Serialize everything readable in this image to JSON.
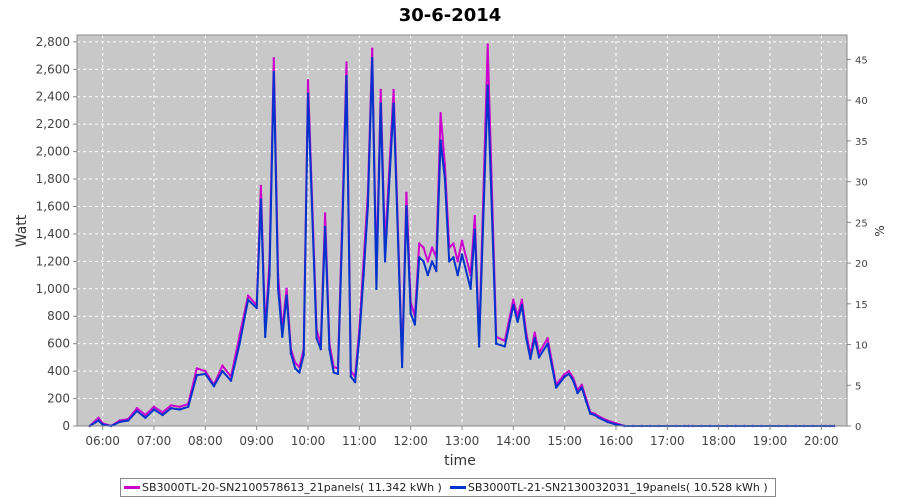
{
  "chart_data": {
    "type": "line",
    "title": "30-6-2014",
    "xlabel": "time",
    "ylabel": "Watt",
    "y2label": "%",
    "ylim": [
      0,
      2850
    ],
    "y2lim": [
      0,
      48
    ],
    "xlim": [
      "05:30",
      "20:30"
    ],
    "yticks": [
      "0",
      "200",
      "400",
      "600",
      "800",
      "1,000",
      "1,200",
      "1,400",
      "1,600",
      "1,800",
      "2,000",
      "2,200",
      "2,400",
      "2,600",
      "2,800"
    ],
    "y2ticks": [
      "0",
      "5",
      "10",
      "15",
      "20",
      "25",
      "30",
      "35",
      "40",
      "45"
    ],
    "xticks": [
      "06:00",
      "07:00",
      "08:00",
      "09:00",
      "10:00",
      "11:00",
      "12:00",
      "13:00",
      "14:00",
      "15:00",
      "16:00",
      "17:00",
      "18:00",
      "19:00",
      "20:00"
    ],
    "grid": true,
    "legend_position": "bottom",
    "series": [
      {
        "name": "SB3000TL-20-SN2100578613_21panels( 11.342 kWh )",
        "color": "#cc00cc",
        "x": [
          "05:45",
          "05:55",
          "06:00",
          "06:10",
          "06:20",
          "06:30",
          "06:40",
          "06:50",
          "07:00",
          "07:10",
          "07:20",
          "07:30",
          "07:40",
          "07:50",
          "08:00",
          "08:10",
          "08:20",
          "08:30",
          "08:40",
          "08:50",
          "09:00",
          "09:05",
          "09:10",
          "09:15",
          "09:20",
          "09:25",
          "09:30",
          "09:35",
          "09:40",
          "09:45",
          "09:50",
          "09:55",
          "10:00",
          "10:10",
          "10:15",
          "10:20",
          "10:25",
          "10:30",
          "10:35",
          "10:40",
          "10:45",
          "10:50",
          "10:55",
          "11:00",
          "11:05",
          "11:10",
          "11:15",
          "11:20",
          "11:25",
          "11:30",
          "11:40",
          "11:50",
          "11:55",
          "12:00",
          "12:05",
          "12:10",
          "12:15",
          "12:20",
          "12:25",
          "12:30",
          "12:35",
          "12:40",
          "12:45",
          "12:50",
          "12:55",
          "13:00",
          "13:10",
          "13:15",
          "13:20",
          "13:30",
          "13:40",
          "13:50",
          "14:00",
          "14:05",
          "14:10",
          "14:15",
          "14:20",
          "14:25",
          "14:30",
          "14:40",
          "14:50",
          "15:00",
          "15:05",
          "15:10",
          "15:15",
          "15:20",
          "15:25",
          "15:30",
          "15:35",
          "15:40",
          "15:50",
          "16:00",
          "16:10",
          "16:20",
          "16:30",
          "16:40",
          "16:50",
          "17:00",
          "17:10",
          "17:20",
          "17:25",
          "17:30",
          "17:40",
          "17:50",
          "18:00",
          "18:10",
          "18:20",
          "18:30",
          "18:40",
          "18:50",
          "19:00",
          "19:10",
          "19:20",
          "19:30",
          "19:40",
          "19:50",
          "20:00",
          "20:05",
          "20:10",
          "20:15"
        ],
        "values": [
          0,
          60,
          20,
          0,
          40,
          50,
          130,
          80,
          140,
          100,
          150,
          140,
          160,
          420,
          400,
          300,
          440,
          360,
          660,
          950,
          880,
          1750,
          700,
          1200,
          2680,
          1100,
          700,
          1000,
          560,
          460,
          430,
          560,
          2520,
          700,
          600,
          1550,
          600,
          430,
          420,
          1500,
          2650,
          400,
          360,
          700,
          1200,
          1700,
          2750,
          1100,
          2450,
          1300,
          2450,
          470,
          1700,
          900,
          800,
          1330,
          1300,
          1200,
          1300,
          1230,
          2280,
          1900,
          1300,
          1330,
          1200,
          1350,
          1100,
          1530,
          620,
          2780,
          650,
          620,
          920,
          800,
          920,
          680,
          520,
          680,
          530,
          640,
          300,
          380,
          400,
          350,
          260,
          300,
          200,
          100,
          90,
          70,
          40,
          20,
          0,
          0,
          0,
          0,
          0,
          0,
          0,
          0,
          0,
          0,
          0,
          0,
          0,
          0,
          0,
          0,
          0,
          0,
          0,
          0,
          0,
          0,
          0,
          0,
          0,
          0,
          0,
          0
        ]
      },
      {
        "name": "SB3000TL-21-SN2130032031_19panels( 10.528 kWh )",
        "color": "#0033cc",
        "x": [
          "05:45",
          "05:55",
          "06:00",
          "06:10",
          "06:20",
          "06:30",
          "06:40",
          "06:50",
          "07:00",
          "07:10",
          "07:20",
          "07:30",
          "07:40",
          "07:50",
          "08:00",
          "08:10",
          "08:20",
          "08:30",
          "08:40",
          "08:50",
          "09:00",
          "09:05",
          "09:10",
          "09:15",
          "09:20",
          "09:25",
          "09:30",
          "09:35",
          "09:40",
          "09:45",
          "09:50",
          "09:55",
          "10:00",
          "10:10",
          "10:15",
          "10:20",
          "10:25",
          "10:30",
          "10:35",
          "10:40",
          "10:45",
          "10:50",
          "10:55",
          "11:00",
          "11:05",
          "11:10",
          "11:15",
          "11:20",
          "11:25",
          "11:30",
          "11:40",
          "11:50",
          "11:55",
          "12:00",
          "12:05",
          "12:10",
          "12:15",
          "12:20",
          "12:25",
          "12:30",
          "12:35",
          "12:40",
          "12:45",
          "12:50",
          "12:55",
          "13:00",
          "13:10",
          "13:15",
          "13:20",
          "13:30",
          "13:40",
          "13:50",
          "14:00",
          "14:05",
          "14:10",
          "14:15",
          "14:20",
          "14:25",
          "14:30",
          "14:40",
          "14:50",
          "15:00",
          "15:05",
          "15:10",
          "15:15",
          "15:20",
          "15:25",
          "15:30",
          "15:35",
          "15:40",
          "15:50",
          "16:00",
          "16:10",
          "16:20",
          "16:30",
          "16:40",
          "16:50",
          "17:00",
          "17:10",
          "17:20",
          "17:25",
          "17:30",
          "17:40",
          "17:50",
          "18:00",
          "18:10",
          "18:20",
          "18:30",
          "18:40",
          "18:50",
          "19:00",
          "19:10",
          "19:20",
          "19:30",
          "19:40",
          "19:50",
          "20:00",
          "20:05",
          "20:10",
          "20:15"
        ],
        "values": [
          0,
          40,
          10,
          0,
          30,
          40,
          110,
          60,
          120,
          80,
          130,
          120,
          140,
          370,
          380,
          290,
          400,
          330,
          600,
          920,
          860,
          1650,
          650,
          1100,
          2580,
          1000,
          650,
          950,
          530,
          420,
          390,
          520,
          2420,
          640,
          560,
          1450,
          560,
          390,
          380,
          1400,
          2550,
          360,
          320,
          640,
          1100,
          1600,
          2680,
          1000,
          2350,
          1200,
          2350,
          430,
          1600,
          820,
          740,
          1230,
          1200,
          1100,
          1200,
          1130,
          2080,
          1800,
          1200,
          1230,
          1100,
          1250,
          1000,
          1430,
          580,
          2480,
          600,
          580,
          880,
          760,
          880,
          640,
          490,
          640,
          500,
          600,
          280,
          360,
          380,
          330,
          240,
          280,
          180,
          90,
          80,
          60,
          30,
          10,
          0,
          0,
          0,
          0,
          0,
          0,
          0,
          0,
          0,
          0,
          0,
          0,
          0,
          0,
          0,
          0,
          0,
          0,
          0,
          0,
          0,
          0,
          0,
          0,
          0,
          0,
          0,
          0
        ]
      }
    ]
  }
}
